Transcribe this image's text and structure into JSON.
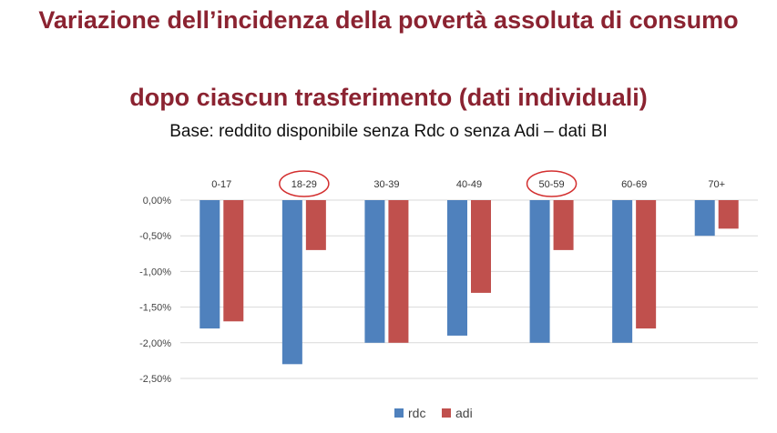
{
  "header": {
    "title_line1": "Variazione dell’incidenza della povertà assoluta di consumo",
    "title_line2": "dopo ciascun trasferimento (dati individuali)",
    "subtitle": "Base: reddito disponibile senza Rdc o senza Adi – dati BI"
  },
  "chart_data": {
    "type": "bar",
    "categories": [
      "0-17",
      "18-29",
      "30-39",
      "40-49",
      "50-59",
      "60-69",
      "70+"
    ],
    "series": [
      {
        "name": "rdc",
        "color": "#4f81bd",
        "values": [
          -1.8,
          -2.3,
          -2.0,
          -1.9,
          -2.0,
          -2.0,
          -0.5
        ]
      },
      {
        "name": "adi",
        "color": "#c0504d",
        "values": [
          -1.7,
          -0.7,
          -2.0,
          -1.3,
          -0.7,
          -1.8,
          -0.4
        ]
      }
    ],
    "yticks": [
      "0,00%",
      "-0,50%",
      "-1,00%",
      "-1,50%",
      "-2,00%",
      "-2,50%"
    ],
    "ytick_values": [
      0,
      -0.5,
      -1.0,
      -1.5,
      -2.0,
      -2.5
    ],
    "ylim": [
      -2.5,
      0
    ],
    "grid": true,
    "legend_position": "bottom-center",
    "highlighted_categories": [
      "18-29",
      "50-59"
    ],
    "highlight_color": "#d32f2f"
  }
}
